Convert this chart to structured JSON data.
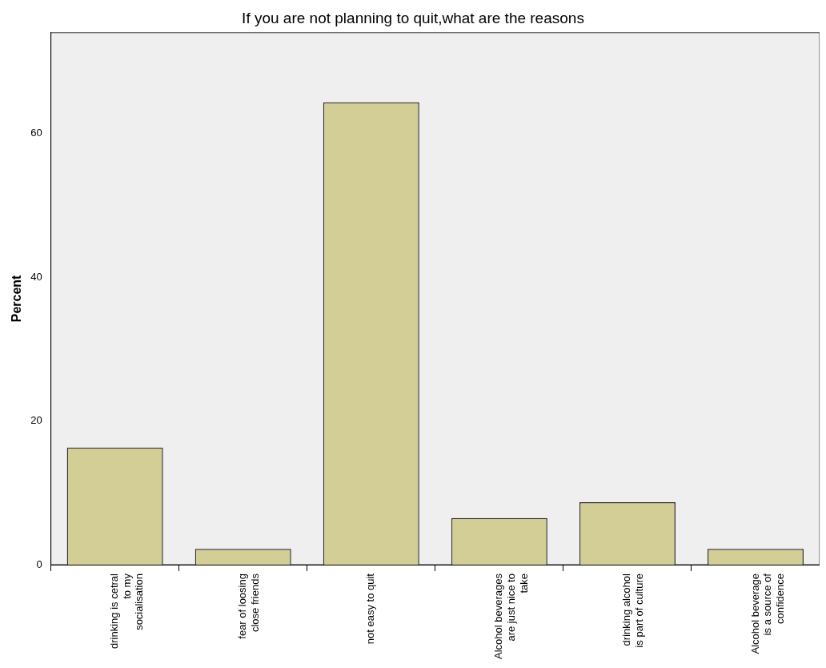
{
  "chart_data": {
    "type": "bar",
    "title": "If you are not planning to quit,what are the reasons",
    "ylabel": "Percent",
    "categories": [
      "drinking is cetral to my socialisation",
      "fear of loosing close friends",
      "not easy to quit",
      "Alcohol beverages are just nice to take",
      "drinking alcohol is part of culture",
      "Alcohol beverage is a source of confidence"
    ],
    "values": [
      16.3,
      2.2,
      64.3,
      6.5,
      8.7,
      2.2
    ],
    "color": "#d3cd96",
    "ylim": [
      0,
      74
    ],
    "yticks": [
      0,
      20,
      40,
      60
    ]
  }
}
